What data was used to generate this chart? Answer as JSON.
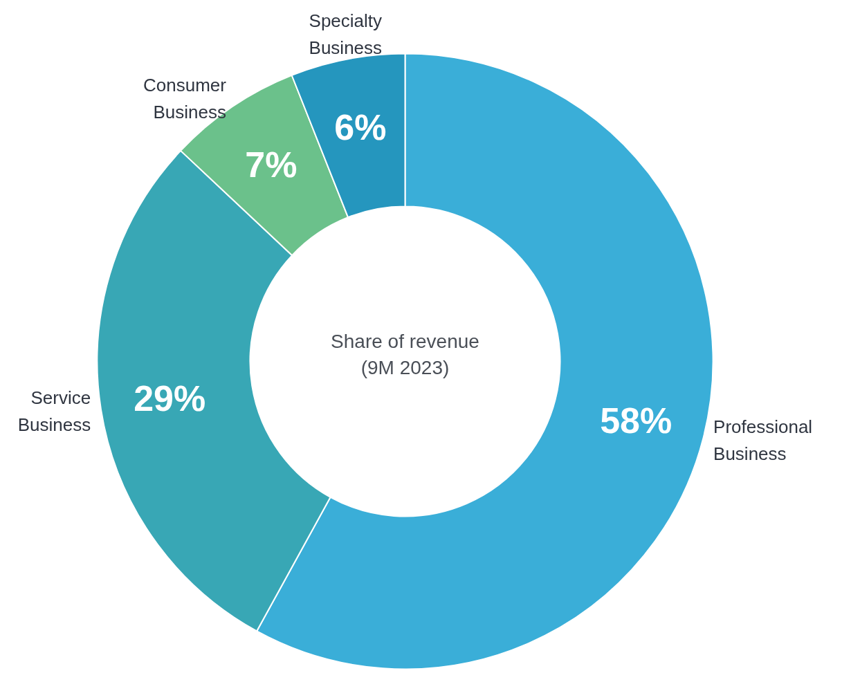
{
  "chart_data": {
    "type": "donut",
    "title": "Share of revenue\n(9M 2023)",
    "categories": [
      "Professional\nBusiness",
      "Service\nBusiness",
      "Consumer\nBusiness",
      "Specialty\nBusiness"
    ],
    "values": [
      58,
      29,
      7,
      6
    ],
    "colors": [
      "#3aaed8",
      "#38a7b5",
      "#6bc18b",
      "#2596be"
    ],
    "value_labels": [
      "58%",
      "29%",
      "7%",
      "6%"
    ]
  }
}
